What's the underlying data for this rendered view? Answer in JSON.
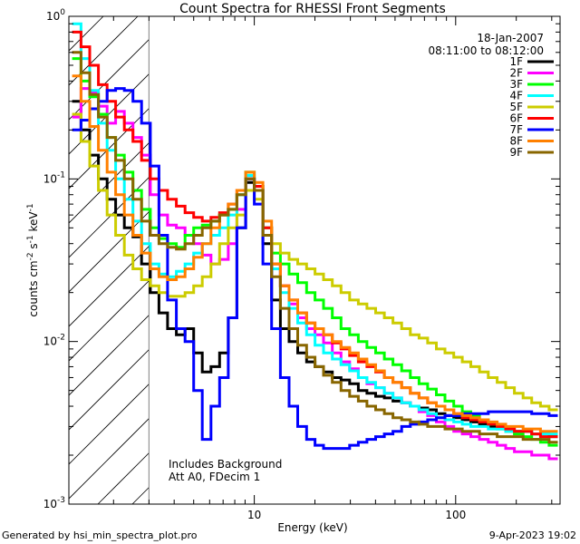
{
  "chart_data": {
    "type": "line",
    "title": "Count Spectra for RHESSI Front Segments",
    "xlabel": "Energy (keV)",
    "ylabel_main": "counts cm",
    "ylabel_exp1": "-2",
    "ylabel_mid": " s",
    "ylabel_exp2": "-1",
    "ylabel_tail": " keV",
    "ylabel_exp3": "-1",
    "xscale": "log",
    "yscale": "log",
    "xlim": [
      1.2,
      330
    ],
    "ylim": [
      0.001,
      1.0
    ],
    "x_ticks": [
      {
        "value": 10,
        "label": "10"
      },
      {
        "value": 100,
        "label": "100"
      }
    ],
    "y_ticks": [
      {
        "value": 0.001,
        "base": "10",
        "exp": "-3"
      },
      {
        "value": 0.01,
        "base": "10",
        "exp": "-2"
      },
      {
        "value": 0.1,
        "base": "10",
        "exp": "-1"
      },
      {
        "value": 1.0,
        "base": "10",
        "exp": "0"
      }
    ],
    "hatch_region": {
      "x_from": 1.2,
      "x_to": 3.0
    },
    "legend_position": "top-right",
    "header_lines": [
      "18-Jan-2007",
      "08:11:00 to 08:12:00"
    ],
    "annotations": [
      "Includes Background",
      "Att A0, FDecim 1"
    ],
    "bins": [
      1.31,
      1.45,
      1.6,
      1.77,
      1.95,
      2.15,
      2.38,
      2.62,
      2.9,
      3.2,
      3.53,
      3.9,
      4.31,
      4.76,
      5.25,
      5.8,
      6.4,
      7.07,
      7.8,
      8.62,
      9.52,
      10.5,
      11.6,
      12.8,
      14.2,
      15.6,
      17.3,
      19.1,
      21.0,
      23.2,
      25.7,
      28.3,
      31.3,
      34.5,
      38.1,
      42.1,
      46.5,
      51.3,
      56.7,
      62.6,
      69.1,
      76.3,
      84.3,
      93.0,
      103.0,
      113.0,
      125.0,
      138.0,
      153.0,
      169.0,
      186.0,
      206.0,
      227.0,
      251.0,
      277.0,
      306.0
    ],
    "series": [
      {
        "name": "1F",
        "color": "#000000",
        "values": [
          0.3,
          0.2,
          0.14,
          0.1,
          0.075,
          0.06,
          0.05,
          0.044,
          0.03,
          0.02,
          0.015,
          0.012,
          0.011,
          0.012,
          0.0085,
          0.0065,
          0.007,
          0.0085,
          0.014,
          0.05,
          0.095,
          0.085,
          0.04,
          0.018,
          0.012,
          0.01,
          0.0085,
          0.0075,
          0.007,
          0.0065,
          0.006,
          0.0058,
          0.0055,
          0.005,
          0.0048,
          0.0046,
          0.0045,
          0.0043,
          0.0042,
          0.004,
          0.0039,
          0.0038,
          0.0036,
          0.0035,
          0.0034,
          0.0033,
          0.0032,
          0.0031,
          0.003,
          0.003,
          0.0029,
          0.0028,
          0.0028,
          0.0027,
          0.0027,
          0.0026
        ]
      },
      {
        "name": "2F",
        "color": "#ff00ff",
        "values": [
          0.24,
          0.36,
          0.34,
          0.28,
          0.22,
          0.26,
          0.22,
          0.18,
          0.14,
          0.08,
          0.06,
          0.052,
          0.05,
          0.045,
          0.04,
          0.034,
          0.03,
          0.032,
          0.04,
          0.065,
          0.1,
          0.09,
          0.05,
          0.03,
          0.022,
          0.017,
          0.014,
          0.012,
          0.011,
          0.0098,
          0.0085,
          0.0075,
          0.0068,
          0.006,
          0.0055,
          0.0052,
          0.0048,
          0.0045,
          0.0042,
          0.004,
          0.0037,
          0.0035,
          0.0032,
          0.003,
          0.0028,
          0.0027,
          0.0026,
          0.0025,
          0.0024,
          0.0023,
          0.0022,
          0.0021,
          0.0021,
          0.002,
          0.002,
          0.0019
        ]
      },
      {
        "name": "3F",
        "color": "#00ff00",
        "values": [
          0.55,
          0.4,
          0.32,
          0.25,
          0.18,
          0.14,
          0.11,
          0.085,
          0.065,
          0.05,
          0.043,
          0.04,
          0.038,
          0.045,
          0.05,
          0.052,
          0.055,
          0.06,
          0.065,
          0.08,
          0.11,
          0.09,
          0.05,
          0.035,
          0.03,
          0.026,
          0.023,
          0.02,
          0.018,
          0.016,
          0.014,
          0.012,
          0.011,
          0.01,
          0.0092,
          0.0085,
          0.0078,
          0.0072,
          0.0066,
          0.006,
          0.0055,
          0.0051,
          0.0047,
          0.0043,
          0.004,
          0.0037,
          0.0035,
          0.0033,
          0.0031,
          0.0029,
          0.0028,
          0.0027,
          0.0026,
          0.0025,
          0.0024,
          0.0023
        ]
      },
      {
        "name": "4F",
        "color": "#00ffff",
        "values": [
          0.9,
          0.55,
          0.35,
          0.22,
          0.15,
          0.1,
          0.075,
          0.055,
          0.04,
          0.03,
          0.026,
          0.025,
          0.027,
          0.03,
          0.035,
          0.04,
          0.045,
          0.05,
          0.06,
          0.08,
          0.105,
          0.09,
          0.05,
          0.028,
          0.02,
          0.016,
          0.013,
          0.011,
          0.0095,
          0.0085,
          0.0078,
          0.0072,
          0.0066,
          0.006,
          0.0056,
          0.0052,
          0.0048,
          0.0045,
          0.0042,
          0.004,
          0.0038,
          0.0036,
          0.0034,
          0.0033,
          0.0032,
          0.0031,
          0.003,
          0.003,
          0.0029,
          0.0029,
          0.0028,
          0.0028,
          0.0028,
          0.0027,
          0.0027,
          0.0027
        ]
      },
      {
        "name": "5F",
        "color": "#cccc00",
        "values": [
          0.25,
          0.17,
          0.12,
          0.085,
          0.06,
          0.045,
          0.034,
          0.028,
          0.024,
          0.022,
          0.02,
          0.019,
          0.019,
          0.02,
          0.022,
          0.025,
          0.03,
          0.04,
          0.05,
          0.06,
          0.085,
          0.075,
          0.05,
          0.04,
          0.035,
          0.032,
          0.03,
          0.028,
          0.026,
          0.024,
          0.022,
          0.02,
          0.018,
          0.017,
          0.016,
          0.015,
          0.014,
          0.013,
          0.012,
          0.011,
          0.0105,
          0.0098,
          0.009,
          0.0085,
          0.008,
          0.0075,
          0.007,
          0.0065,
          0.006,
          0.0056,
          0.0052,
          0.0048,
          0.0045,
          0.0042,
          0.004,
          0.0038
        ]
      },
      {
        "name": "6F",
        "color": "#ff0000",
        "values": [
          0.8,
          0.65,
          0.5,
          0.38,
          0.3,
          0.24,
          0.2,
          0.17,
          0.13,
          0.1,
          0.085,
          0.075,
          0.068,
          0.062,
          0.058,
          0.055,
          0.058,
          0.062,
          0.07,
          0.085,
          0.1,
          0.09,
          0.05,
          0.03,
          0.022,
          0.018,
          0.015,
          0.013,
          0.012,
          0.011,
          0.0098,
          0.009,
          0.0082,
          0.0075,
          0.007,
          0.0065,
          0.006,
          0.0056,
          0.0052,
          0.0048,
          0.0045,
          0.0042,
          0.004,
          0.0038,
          0.0036,
          0.0034,
          0.0033,
          0.0032,
          0.0031,
          0.003,
          0.0029,
          0.0028,
          0.0028,
          0.0027,
          0.0026,
          0.0026
        ]
      },
      {
        "name": "7F",
        "color": "#0000ff",
        "values": [
          0.2,
          0.23,
          0.27,
          0.3,
          0.35,
          0.36,
          0.35,
          0.3,
          0.22,
          0.12,
          0.045,
          0.018,
          0.012,
          0.01,
          0.005,
          0.0025,
          0.004,
          0.006,
          0.014,
          0.05,
          0.1,
          0.07,
          0.03,
          0.012,
          0.006,
          0.004,
          0.003,
          0.0025,
          0.0023,
          0.0022,
          0.0022,
          0.0022,
          0.0023,
          0.0024,
          0.0025,
          0.0026,
          0.0027,
          0.0028,
          0.003,
          0.0031,
          0.0032,
          0.0033,
          0.0034,
          0.0035,
          0.0035,
          0.0036,
          0.0036,
          0.0036,
          0.0037,
          0.0037,
          0.0037,
          0.0037,
          0.0037,
          0.0036,
          0.0036,
          0.0035
        ]
      },
      {
        "name": "8F",
        "color": "#ff8000",
        "values": [
          0.43,
          0.3,
          0.21,
          0.15,
          0.11,
          0.08,
          0.06,
          0.045,
          0.035,
          0.028,
          0.025,
          0.024,
          0.025,
          0.028,
          0.033,
          0.04,
          0.05,
          0.06,
          0.07,
          0.085,
          0.11,
          0.095,
          0.055,
          0.03,
          0.022,
          0.018,
          0.015,
          0.013,
          0.012,
          0.011,
          0.01,
          0.0092,
          0.0085,
          0.0078,
          0.0072,
          0.0066,
          0.006,
          0.0056,
          0.0052,
          0.0048,
          0.0045,
          0.0042,
          0.004,
          0.0038,
          0.0036,
          0.0035,
          0.0034,
          0.0033,
          0.0032,
          0.0031,
          0.003,
          0.003,
          0.0029,
          0.0029,
          0.0028,
          0.0028
        ]
      },
      {
        "name": "9F",
        "color": "#886600",
        "values": [
          0.6,
          0.45,
          0.33,
          0.24,
          0.18,
          0.13,
          0.1,
          0.075,
          0.055,
          0.045,
          0.04,
          0.038,
          0.037,
          0.04,
          0.045,
          0.05,
          0.055,
          0.06,
          0.065,
          0.08,
          0.1,
          0.085,
          0.045,
          0.025,
          0.016,
          0.012,
          0.0095,
          0.008,
          0.007,
          0.0062,
          0.0056,
          0.005,
          0.0046,
          0.0043,
          0.004,
          0.0038,
          0.0036,
          0.0034,
          0.0033,
          0.0032,
          0.0031,
          0.003,
          0.003,
          0.0029,
          0.0029,
          0.0028,
          0.0028,
          0.0027,
          0.0027,
          0.0026,
          0.0026,
          0.0026,
          0.0025,
          0.0025,
          0.0025,
          0.0024
        ]
      }
    ]
  },
  "footer": {
    "generated_by": "Generated by hsi_min_spectra_plot.pro",
    "timestamp": "9-Apr-2023 19:02"
  },
  "colors": {
    "background": "#ffffff",
    "axis": "#000000"
  }
}
